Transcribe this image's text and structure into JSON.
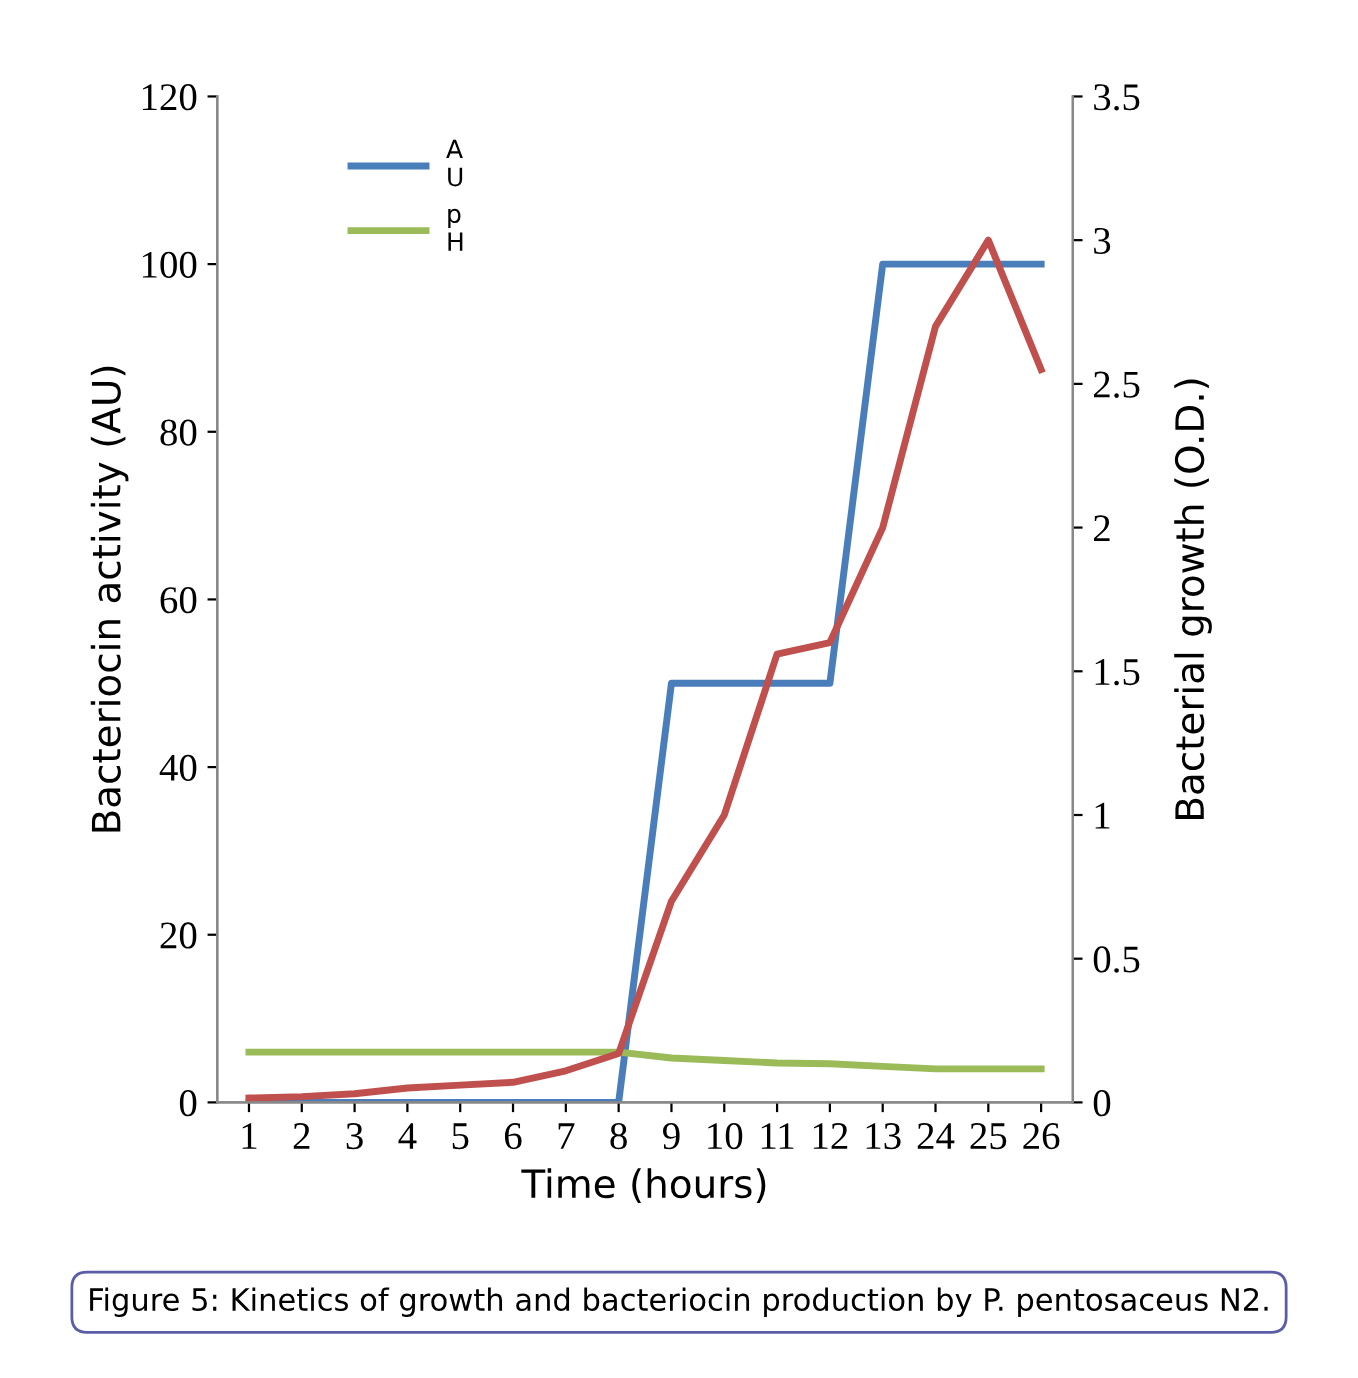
{
  "chart_data": {
    "type": "line",
    "xlabel": "Time (hours)",
    "ylabel": "Bacteriocin activity (AU)",
    "y2label": "Bacterial growth (O.D.)",
    "categories": [
      "1",
      "2",
      "3",
      "4",
      "5",
      "6",
      "7",
      "8",
      "9",
      "10",
      "11",
      "12",
      "13",
      "24",
      "25",
      "26"
    ],
    "series": [
      {
        "name": "AU",
        "color": "#4a7ebb",
        "values": [
          0,
          0,
          0,
          0,
          0,
          0,
          0,
          0,
          50,
          50,
          50,
          50,
          100,
          100,
          100,
          100
        ]
      },
      {
        "name": "pH",
        "color": "#9bbb59",
        "values": [
          6,
          6,
          6,
          6,
          6,
          6,
          6,
          6,
          5.3,
          5.0,
          4.7,
          4.6,
          4.3,
          4.0,
          4.0,
          4.0
        ]
      },
      {
        "color": "#c0504d",
        "axis": "y2",
        "values": [
          0.015,
          0.02,
          0.03,
          0.05,
          0.06,
          0.07,
          0.11,
          0.17,
          0.7,
          1.0,
          1.56,
          1.6,
          2.0,
          2.7,
          3.0,
          2.55
        ]
      }
    ],
    "ylim": [
      0,
      120
    ],
    "yticks": [
      0,
      20,
      40,
      60,
      80,
      100,
      120
    ],
    "y2lim": [
      0,
      3.5
    ],
    "y2ticks": [
      0,
      0.5,
      1,
      1.5,
      2,
      2.5,
      3,
      3.5
    ],
    "legend": "top left",
    "grid": false,
    "marker": "none",
    "line_style": "solid",
    "annotations": [
      "Figure 5: Kinetics of growth and bacteriocin production by P. pentosaceus N2."
    ]
  }
}
